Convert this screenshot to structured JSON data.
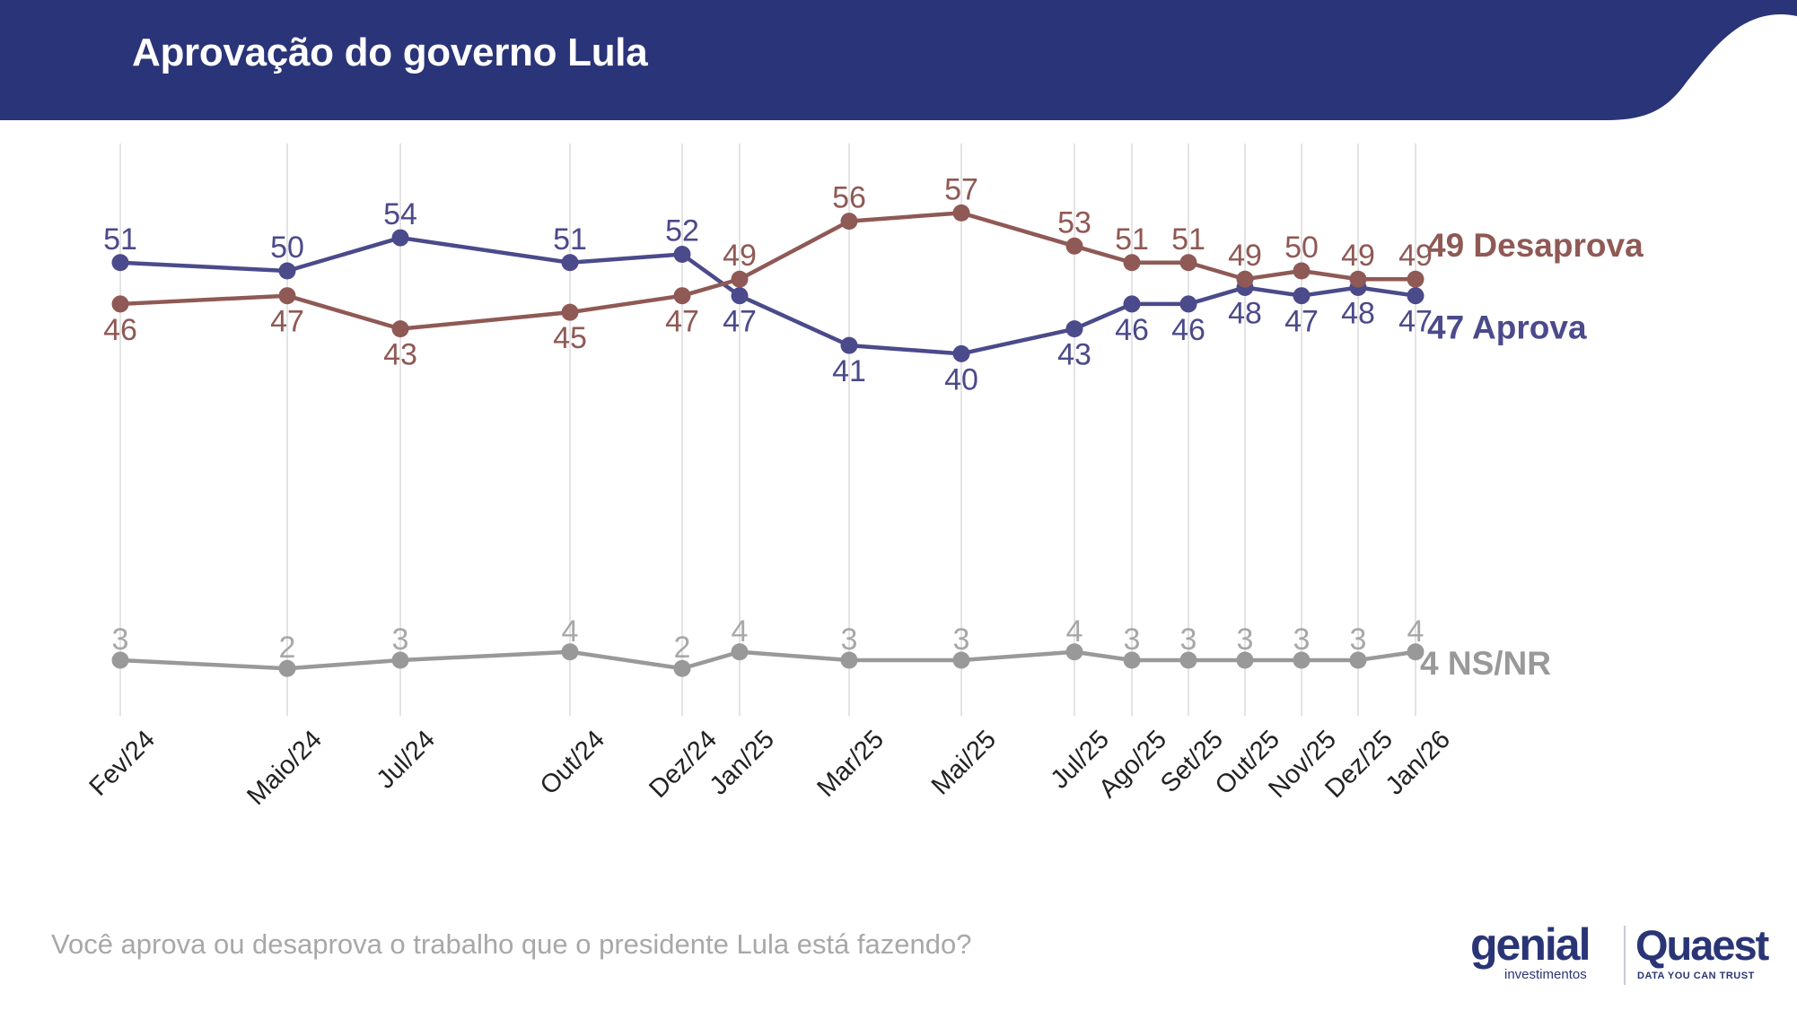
{
  "header": {
    "title": "Aprovação do governo Lula",
    "background_color": "#2a3478"
  },
  "question": "Você aprova ou desaprova o trabalho que o presidente Lula está fazendo?",
  "logos": {
    "genial": "genial",
    "genial_sub": "investimentos",
    "quaest": "Quaest",
    "quaest_tagline": "DATA YOU CAN TRUST"
  },
  "chart_data": {
    "type": "line",
    "x_labels": [
      "Fev/24",
      "Maio/24",
      "Jul/24",
      "Out/24",
      "Dez/24",
      "Jan/25",
      "Mar/25",
      "Mai/25",
      "Jul/25",
      "Ago/25",
      "Set/25",
      "Out/25",
      "Nov/25",
      "Dez/25",
      "Jan/26"
    ],
    "ylim": [
      0,
      60
    ],
    "grid": "vertical",
    "series": [
      {
        "name": "Aprova",
        "end_label": "47 Aprova",
        "color": "#4b4a8b",
        "values": [
          51,
          50,
          54,
          51,
          52,
          47,
          41,
          40,
          43,
          46,
          46,
          48,
          47,
          48,
          47
        ]
      },
      {
        "name": "Desaprova",
        "end_label": "49 Desaprova",
        "color": "#8f5955",
        "values": [
          46,
          47,
          43,
          45,
          47,
          49,
          56,
          57,
          53,
          51,
          51,
          49,
          50,
          49,
          49
        ]
      },
      {
        "name": "NS/NR",
        "end_label": "4 NS/NR",
        "color": "#999999",
        "values": [
          3,
          2,
          3,
          4,
          2,
          4,
          3,
          3,
          4,
          3,
          3,
          3,
          3,
          3,
          4
        ]
      }
    ]
  }
}
